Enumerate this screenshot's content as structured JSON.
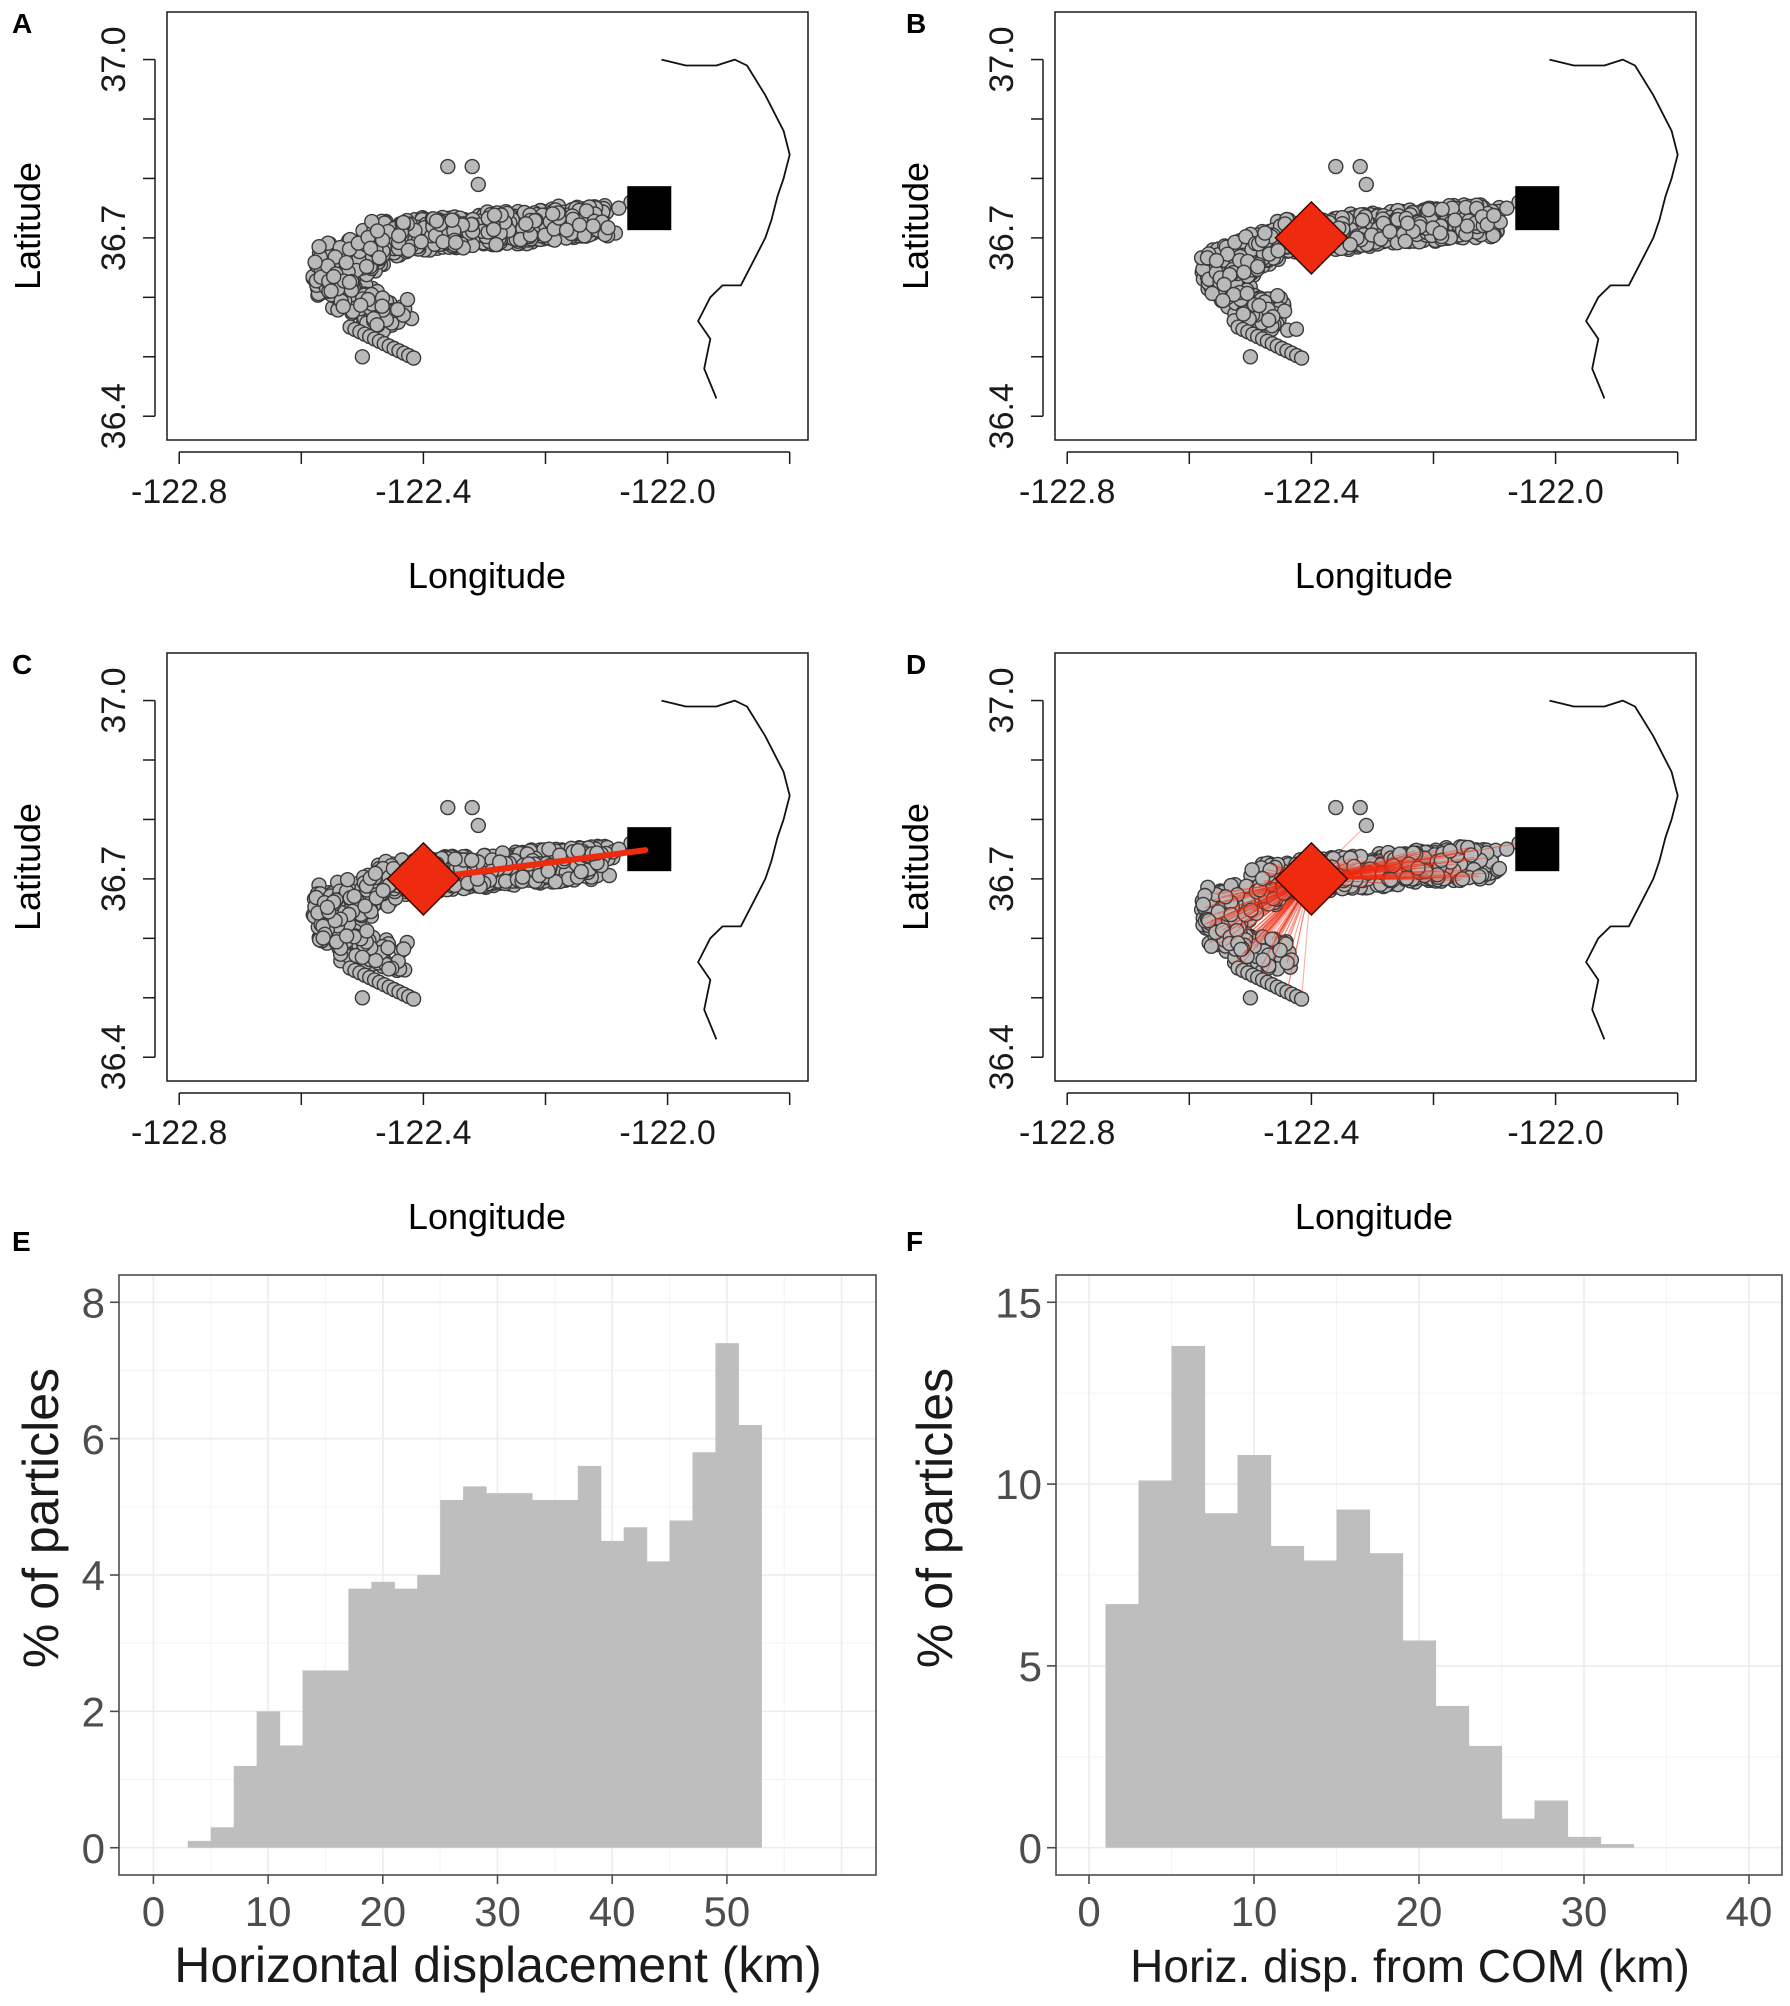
{
  "colors": {
    "point_fill": "#b9b9b9",
    "point_stroke": "#3a3a3a",
    "com_marker": "#ef2b0f",
    "source_marker": "#000000",
    "coastline": "#111111",
    "bar_fill": "#bebebe",
    "ggplot_grid": "#ececec"
  },
  "chart_data": [
    {
      "panel": "A",
      "type": "scatter",
      "title": "",
      "xlabel": "Longitude",
      "ylabel": "Latitude",
      "xlim": [
        -122.82,
        -121.77
      ],
      "ylim": [
        36.36,
        37.08
      ],
      "xticks": [
        -122.8,
        -122.6,
        -122.4,
        -122.2,
        -122.0,
        -121.8
      ],
      "xtick_labels": [
        "-122.8",
        "",
        "-122.4",
        "",
        "-122.0",
        ""
      ],
      "yticks": [
        36.4,
        36.5,
        36.6,
        36.7,
        36.8,
        36.9,
        37.0
      ],
      "ytick_labels": [
        "36.4",
        "",
        "",
        "36.7",
        "",
        "",
        "37.0"
      ],
      "source": {
        "lon": -122.03,
        "lat": 36.75,
        "label": "release site"
      },
      "plume": {
        "n": 1100,
        "lon_range": [
          -122.57,
          -122.08
        ],
        "lat_range": [
          36.49,
          36.79
        ]
      },
      "outliers": [
        {
          "lon": -122.36,
          "lat": 36.82
        },
        {
          "lon": -122.32,
          "lat": 36.82
        },
        {
          "lon": -122.31,
          "lat": 36.79
        }
      ],
      "show_com": false,
      "connector": "none"
    },
    {
      "panel": "B",
      "type": "scatter",
      "title": "",
      "xlabel": "Longitude",
      "ylabel": "Latitude",
      "xlim": [
        -122.82,
        -121.77
      ],
      "ylim": [
        36.36,
        37.08
      ],
      "xticks": [
        -122.8,
        -122.6,
        -122.4,
        -122.2,
        -122.0,
        -121.8
      ],
      "xtick_labels": [
        "-122.8",
        "",
        "-122.4",
        "",
        "-122.0",
        ""
      ],
      "yticks": [
        36.4,
        36.5,
        36.6,
        36.7,
        36.8,
        36.9,
        37.0
      ],
      "ytick_labels": [
        "36.4",
        "",
        "",
        "36.7",
        "",
        "",
        "37.0"
      ],
      "source": {
        "lon": -122.03,
        "lat": 36.75,
        "label": "release site"
      },
      "plume": {
        "n": 1100,
        "lon_range": [
          -122.57,
          -122.08
        ],
        "lat_range": [
          36.49,
          36.79
        ]
      },
      "outliers": [
        {
          "lon": -122.36,
          "lat": 36.82
        },
        {
          "lon": -122.32,
          "lat": 36.82
        },
        {
          "lon": -122.31,
          "lat": 36.79
        }
      ],
      "show_com": true,
      "com": {
        "lon": -122.4,
        "lat": 36.7,
        "label": "center of mass"
      },
      "connector": "none"
    },
    {
      "panel": "C",
      "type": "scatter",
      "title": "",
      "xlabel": "Longitude",
      "ylabel": "Latitude",
      "xlim": [
        -122.82,
        -121.77
      ],
      "ylim": [
        36.36,
        37.08
      ],
      "xticks": [
        -122.8,
        -122.6,
        -122.4,
        -122.2,
        -122.0,
        -121.8
      ],
      "xtick_labels": [
        "-122.8",
        "",
        "-122.4",
        "",
        "-122.0",
        ""
      ],
      "yticks": [
        36.4,
        36.5,
        36.6,
        36.7,
        36.8,
        36.9,
        37.0
      ],
      "ytick_labels": [
        "36.4",
        "",
        "",
        "36.7",
        "",
        "",
        "37.0"
      ],
      "source": {
        "lon": -122.03,
        "lat": 36.75,
        "label": "release site"
      },
      "plume": {
        "n": 1100,
        "lon_range": [
          -122.57,
          -122.08
        ],
        "lat_range": [
          36.49,
          36.79
        ]
      },
      "outliers": [
        {
          "lon": -122.36,
          "lat": 36.82
        },
        {
          "lon": -122.32,
          "lat": 36.82
        },
        {
          "lon": -122.31,
          "lat": 36.79
        }
      ],
      "show_com": true,
      "com": {
        "lon": -122.4,
        "lat": 36.7,
        "label": "center of mass"
      },
      "connector": "com-to-source"
    },
    {
      "panel": "D",
      "type": "scatter",
      "title": "",
      "xlabel": "Longitude",
      "ylabel": "Latitude",
      "xlim": [
        -122.82,
        -121.77
      ],
      "ylim": [
        36.36,
        37.08
      ],
      "xticks": [
        -122.8,
        -122.6,
        -122.4,
        -122.2,
        -122.0,
        -121.8
      ],
      "xtick_labels": [
        "-122.8",
        "",
        "-122.4",
        "",
        "-122.0",
        ""
      ],
      "yticks": [
        36.4,
        36.5,
        36.6,
        36.7,
        36.8,
        36.9,
        37.0
      ],
      "ytick_labels": [
        "36.4",
        "",
        "",
        "36.7",
        "",
        "",
        "37.0"
      ],
      "source": {
        "lon": -122.03,
        "lat": 36.75,
        "label": "release site"
      },
      "plume": {
        "n": 1100,
        "lon_range": [
          -122.57,
          -122.08
        ],
        "lat_range": [
          36.49,
          36.79
        ]
      },
      "outliers": [
        {
          "lon": -122.36,
          "lat": 36.82
        },
        {
          "lon": -122.32,
          "lat": 36.82
        },
        {
          "lon": -122.31,
          "lat": 36.79
        }
      ],
      "show_com": true,
      "com": {
        "lon": -122.4,
        "lat": 36.7,
        "label": "center of mass"
      },
      "connector": "com-to-particles"
    },
    {
      "panel": "E",
      "type": "bar",
      "title": "",
      "xlabel": "Horizontal displacement (km)",
      "ylabel": "% of particles",
      "xlim": [
        -3,
        63
      ],
      "ylim": [
        -0.4,
        8.4
      ],
      "xticks": [
        0,
        10,
        20,
        30,
        40,
        50
      ],
      "xtick_labels": [
        "0",
        "10",
        "20",
        "30",
        "40",
        "50"
      ],
      "yticks": [
        0,
        2,
        4,
        6,
        8
      ],
      "ytick_labels": [
        "0",
        "2",
        "4",
        "6",
        "8"
      ],
      "bin_width": 2,
      "bin_starts": [
        3,
        5,
        7,
        9,
        11,
        13,
        15,
        17,
        19,
        21,
        23,
        25,
        27,
        29,
        31,
        33,
        35,
        37,
        39,
        41,
        43,
        45,
        47,
        49,
        51
      ],
      "values": [
        0.1,
        0.3,
        1.2,
        2.0,
        1.5,
        2.6,
        2.6,
        3.8,
        3.9,
        3.8,
        4.0,
        5.1,
        5.3,
        5.2,
        5.2,
        5.1,
        5.1,
        5.6,
        4.5,
        4.7,
        4.2,
        4.8,
        5.8,
        7.4,
        6.2
      ]
    },
    {
      "panel": "F",
      "type": "bar",
      "title": "",
      "xlabel": "Horiz. disp. from COM (km)",
      "ylabel": "% of particles",
      "xlim": [
        -2,
        42
      ],
      "ylim": [
        -0.75,
        15.75
      ],
      "xticks": [
        0,
        10,
        20,
        30,
        40
      ],
      "xtick_labels": [
        "0",
        "10",
        "20",
        "30",
        "40"
      ],
      "yticks": [
        0,
        5,
        10,
        15
      ],
      "ytick_labels": [
        "0",
        "5",
        "10",
        "15"
      ],
      "bin_width": 2,
      "bin_starts": [
        1,
        3,
        5,
        7,
        9,
        11,
        13,
        15,
        17,
        19,
        21,
        23,
        25,
        27,
        29,
        31
      ],
      "values": [
        6.7,
        10.1,
        13.8,
        9.2,
        10.8,
        8.3,
        7.9,
        9.3,
        8.1,
        5.7,
        3.9,
        2.8,
        0.8,
        1.3,
        0.3,
        0.1
      ]
    }
  ]
}
